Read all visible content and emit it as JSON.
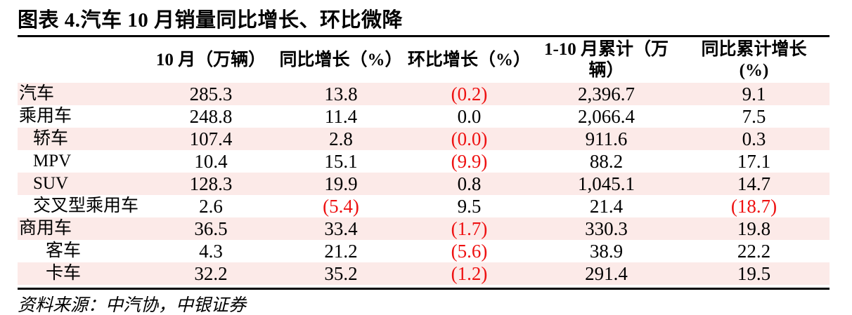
{
  "title": "图表 4.汽车 10 月销量同比增长、环比微降",
  "source_note": "资料来源：中汽协，中银证券",
  "colors": {
    "row_shading": "#fceae8",
    "negative_value": "#ee1111",
    "rule": "#000000"
  },
  "table": {
    "headers": [
      "",
      "10 月（万辆）",
      "同比增长（%）",
      "环比增长（%）",
      "1-10 月累计（万辆）",
      "同比累计增长\n(%)"
    ],
    "rows": [
      {
        "label": "汽车",
        "indent": 0,
        "shaded": true,
        "values": [
          "285.3",
          "13.8",
          "(0.2)",
          "2,396.7",
          "9.1"
        ]
      },
      {
        "label": "乘用车",
        "indent": 0,
        "shaded": false,
        "values": [
          "248.8",
          "11.4",
          "0.0",
          "2,066.4",
          "7.5"
        ]
      },
      {
        "label": "轿车",
        "indent": 1,
        "shaded": true,
        "values": [
          "107.4",
          "2.8",
          "(0.0)",
          "911.6",
          "0.3"
        ]
      },
      {
        "label": "MPV",
        "indent": 1,
        "shaded": false,
        "values": [
          "10.4",
          "15.1",
          "(9.9)",
          "88.2",
          "17.1"
        ]
      },
      {
        "label": "SUV",
        "indent": 1,
        "shaded": true,
        "values": [
          "128.3",
          "19.9",
          "0.8",
          "1,045.1",
          "14.7"
        ]
      },
      {
        "label": "交叉型乘用车",
        "indent": 1,
        "shaded": false,
        "values": [
          "2.6",
          "(5.4)",
          "9.5",
          "21.4",
          "(18.7)"
        ]
      },
      {
        "label": "商用车",
        "indent": 0,
        "shaded": true,
        "values": [
          "36.5",
          "33.4",
          "(1.7)",
          "330.3",
          "19.8"
        ]
      },
      {
        "label": "客车",
        "indent": 2,
        "shaded": false,
        "values": [
          "4.3",
          "21.2",
          "(5.6)",
          "38.9",
          "22.2"
        ]
      },
      {
        "label": "卡车",
        "indent": 2,
        "shaded": true,
        "values": [
          "32.2",
          "35.2",
          "(1.2)",
          "291.4",
          "19.5"
        ]
      }
    ]
  }
}
